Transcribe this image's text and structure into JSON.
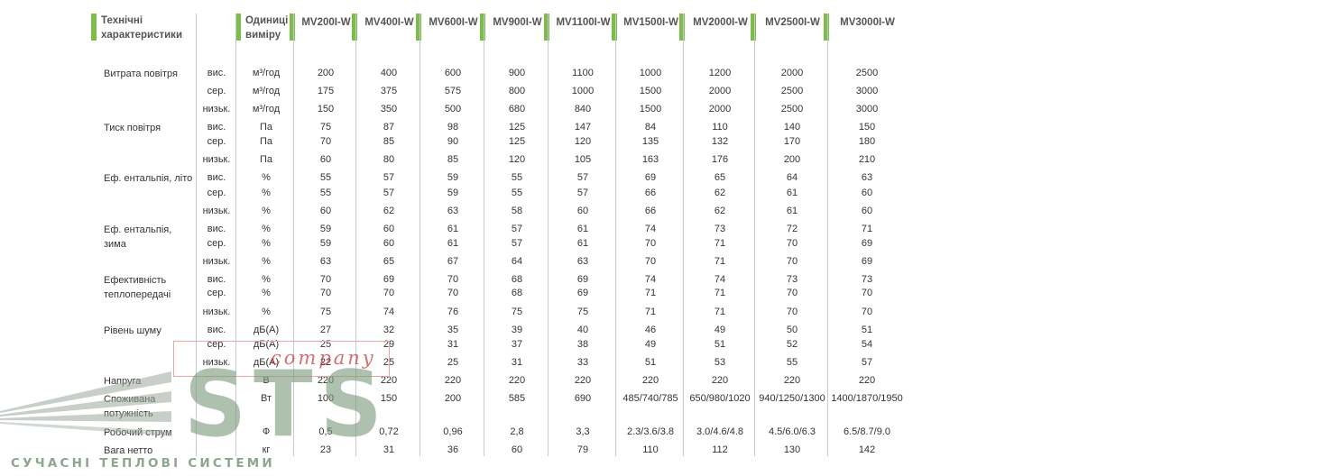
{
  "headers": {
    "param": "Технічні характеристики",
    "unit": "Одиниці виміру",
    "models": [
      "MV200I-W",
      "MV400I-W",
      "MV600I-W",
      "MV900I-W",
      "MV1100I-W",
      "MV1500I-W",
      "MV2000I-W",
      "MV2500I-W",
      "MV3000I-W"
    ]
  },
  "rows": [
    {
      "param": "Витрата повітря",
      "level": "вис.",
      "unit": "м³/год",
      "values": [
        "200",
        "400",
        "600",
        "900",
        "1100",
        "1000",
        "1200",
        "2000",
        "2500"
      ]
    },
    {
      "param": "",
      "level": "сер.",
      "unit": "м³/год",
      "values": [
        "175",
        "375",
        "575",
        "800",
        "1000",
        "1500",
        "2000",
        "2500",
        "3000"
      ]
    },
    {
      "param": "",
      "level": "низьк.",
      "unit": "м³/год",
      "values": [
        "150",
        "350",
        "500",
        "680",
        "840",
        "1500",
        "2000",
        "2500",
        "3000"
      ]
    },
    {
      "param": "Тиск повітря",
      "level": "вис.",
      "unit": "Па",
      "values": [
        "75",
        "87",
        "98",
        "125",
        "147",
        "84",
        "110",
        "140",
        "150"
      ]
    },
    {
      "param": "",
      "level": "сер.",
      "unit": "Па",
      "values": [
        "70",
        "85",
        "90",
        "125",
        "120",
        "135",
        "132",
        "170",
        "180"
      ]
    },
    {
      "param": "",
      "level": "низьк.",
      "unit": "Па",
      "values": [
        "60",
        "80",
        "85",
        "120",
        "105",
        "163",
        "176",
        "200",
        "210"
      ]
    },
    {
      "param": "Еф. ентальпія, літо",
      "level": "вис.",
      "unit": "%",
      "values": [
        "55",
        "57",
        "59",
        "55",
        "57",
        "69",
        "65",
        "64",
        "63"
      ]
    },
    {
      "param": "",
      "level": "сер.",
      "unit": "%",
      "values": [
        "55",
        "57",
        "59",
        "55",
        "57",
        "66",
        "62",
        "61",
        "60"
      ]
    },
    {
      "param": "",
      "level": "низьк.",
      "unit": "%",
      "values": [
        "60",
        "62",
        "63",
        "58",
        "60",
        "66",
        "62",
        "61",
        "60"
      ]
    },
    {
      "param": "Еф. ентальпія, зима",
      "level": "вис.",
      "unit": "%",
      "values": [
        "59",
        "60",
        "61",
        "57",
        "61",
        "74",
        "73",
        "72",
        "71"
      ]
    },
    {
      "param": "",
      "level": "сер.",
      "unit": "%",
      "values": [
        "59",
        "60",
        "61",
        "57",
        "61",
        "70",
        "71",
        "70",
        "69"
      ]
    },
    {
      "param": "",
      "level": "низьк.",
      "unit": "%",
      "values": [
        "63",
        "65",
        "67",
        "64",
        "63",
        "70",
        "71",
        "70",
        "69"
      ]
    },
    {
      "param": "Ефективність теплопередачі",
      "level": "вис.",
      "unit": "%",
      "values": [
        "70",
        "69",
        "70",
        "68",
        "69",
        "74",
        "74",
        "73",
        "73"
      ]
    },
    {
      "param": "",
      "level": "сер.",
      "unit": "%",
      "values": [
        "70",
        "70",
        "70",
        "68",
        "69",
        "71",
        "71",
        "70",
        "70"
      ]
    },
    {
      "param": "",
      "level": "низьк.",
      "unit": "%",
      "values": [
        "75",
        "74",
        "76",
        "75",
        "75",
        "71",
        "71",
        "70",
        "70"
      ]
    },
    {
      "param": "Рівень шуму",
      "level": "вис.",
      "unit": "дБ(А)",
      "values": [
        "27",
        "32",
        "35",
        "39",
        "40",
        "46",
        "49",
        "50",
        "51"
      ]
    },
    {
      "param": "",
      "level": "сер.",
      "unit": "дБ(А)",
      "values": [
        "25",
        "29",
        "31",
        "37",
        "38",
        "49",
        "51",
        "52",
        "54"
      ]
    },
    {
      "param": "",
      "level": "низьк.",
      "unit": "дБ(А)",
      "values": [
        "22",
        "25",
        "25",
        "31",
        "33",
        "51",
        "53",
        "55",
        "57"
      ]
    },
    {
      "param": "Напруга",
      "level": "",
      "unit": "В",
      "values": [
        "220",
        "220",
        "220",
        "220",
        "220",
        "220",
        "220",
        "220",
        "220"
      ]
    },
    {
      "param": "Споживана потужність",
      "level": "",
      "unit": "Вт",
      "values": [
        "100",
        "150",
        "200",
        "585",
        "690",
        "485/740/785",
        "650/980/1020",
        "940/1250/1300",
        "1400/1870/1950"
      ]
    },
    {
      "param": "Робочий струм",
      "level": "",
      "unit": "Ф",
      "values": [
        "0,5",
        "0,72",
        "0,96",
        "2,8",
        "3,3",
        "2.3/3.6/3.8",
        "3.0/4.6/4.8",
        "4.5/6.0/6.3",
        "6.5/8.7/9.0"
      ]
    },
    {
      "param": "Вага нетто",
      "level": "",
      "unit": "кг",
      "values": [
        "23",
        "31",
        "36",
        "60",
        "79",
        "110",
        "112",
        "130",
        "142"
      ]
    }
  ],
  "watermark": {
    "company": "company",
    "logo": "STS",
    "tagline": "СУЧАСНІ ТЕПЛОВІ СИСТЕМИ"
  },
  "colors": {
    "accent": "#7cbc4a",
    "header_text": "#555555",
    "body_text": "#333333",
    "watermark_red": "#c84141",
    "watermark_gray": "#7d9b7d"
  }
}
